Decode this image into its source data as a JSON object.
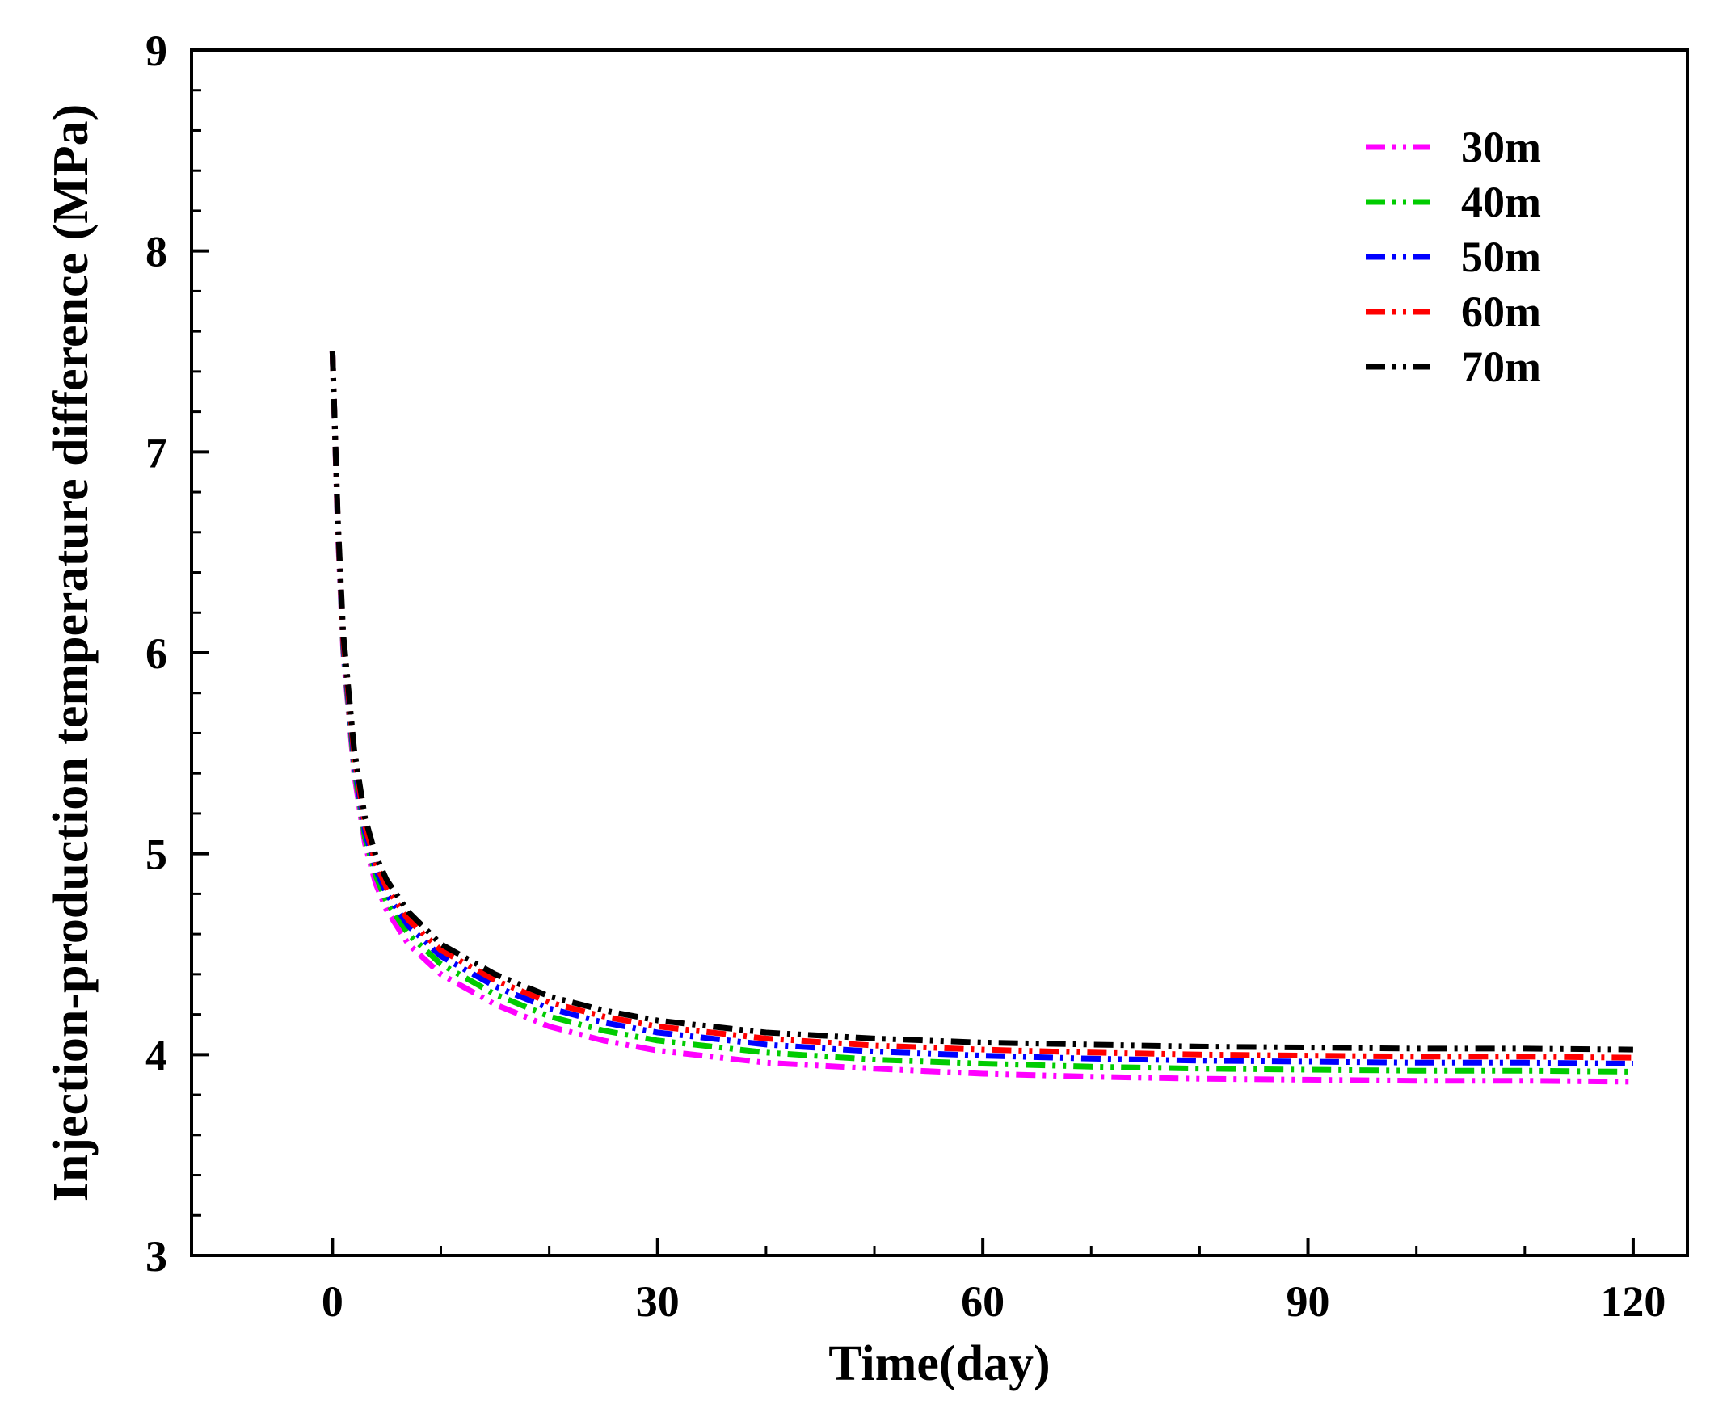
{
  "chart_data": {
    "type": "line",
    "title": "",
    "xlabel": "Time(day)",
    "ylabel": "Injection-production temperature difference (MPa)",
    "xlim": [
      -13,
      125
    ],
    "ylim": [
      3,
      9
    ],
    "xticks": [
      0,
      30,
      60,
      90,
      120
    ],
    "xtick_labels": [
      "0",
      "30",
      "60",
      "90",
      "120"
    ],
    "yticks": [
      3,
      4,
      5,
      6,
      7,
      8,
      9
    ],
    "ytick_labels": [
      "3",
      "4",
      "5",
      "6",
      "7",
      "8",
      "9"
    ],
    "legend_position": "top-right",
    "grid": false,
    "x": [
      0,
      0.5,
      1,
      2,
      3,
      4,
      5,
      7,
      10,
      15,
      20,
      25,
      30,
      40,
      50,
      60,
      70,
      80,
      90,
      100,
      110,
      120
    ],
    "series": [
      {
        "name": "30m",
        "color": "#ff00ff",
        "values": [
          7.5,
          6.6,
          6.0,
          5.4,
          5.05,
          4.85,
          4.72,
          4.55,
          4.4,
          4.25,
          4.14,
          4.07,
          4.02,
          3.96,
          3.93,
          3.905,
          3.89,
          3.88,
          3.875,
          3.87,
          3.87,
          3.865
        ]
      },
      {
        "name": "40m",
        "color": "#00cc00",
        "values": [
          7.5,
          6.62,
          6.02,
          5.43,
          5.08,
          4.89,
          4.76,
          4.6,
          4.45,
          4.3,
          4.19,
          4.12,
          4.07,
          4.01,
          3.975,
          3.955,
          3.94,
          3.93,
          3.925,
          3.92,
          3.92,
          3.915
        ]
      },
      {
        "name": "50m",
        "color": "#0000ff",
        "values": [
          7.5,
          6.63,
          6.04,
          5.46,
          5.11,
          4.92,
          4.8,
          4.64,
          4.49,
          4.34,
          4.23,
          4.16,
          4.11,
          4.05,
          4.015,
          3.995,
          3.98,
          3.97,
          3.965,
          3.96,
          3.96,
          3.955
        ]
      },
      {
        "name": "60m",
        "color": "#ff0000",
        "values": [
          7.5,
          6.64,
          6.06,
          5.49,
          5.14,
          4.95,
          4.83,
          4.67,
          4.52,
          4.37,
          4.26,
          4.19,
          4.14,
          4.08,
          4.045,
          4.025,
          4.01,
          4.0,
          3.995,
          3.99,
          3.99,
          3.985
        ]
      },
      {
        "name": "70m",
        "color": "#000000",
        "values": [
          7.5,
          6.66,
          6.09,
          5.52,
          5.18,
          4.99,
          4.87,
          4.71,
          4.55,
          4.4,
          4.29,
          4.22,
          4.17,
          4.11,
          4.08,
          4.06,
          4.05,
          4.04,
          4.035,
          4.03,
          4.03,
          4.025
        ]
      }
    ]
  }
}
